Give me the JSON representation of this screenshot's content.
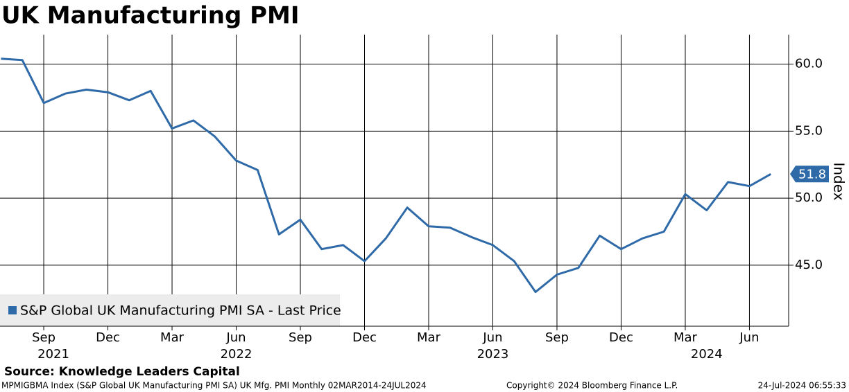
{
  "chart_data": {
    "type": "line",
    "title": "UK Manufacturing PMI",
    "y_label": "Index",
    "source": "Source: Knowledge Leaders Capital",
    "footer_left": "MPMIGBMA Index (S&P Global UK Manufacturing PMI SA) UK Mfg. PMI  Monthly 02MAR2014-24JUL2024",
    "footer_center": "Copyright© 2024 Bloomberg Finance L.P.",
    "footer_right": "24-Jul-2024 06:55:33",
    "x": [
      "2021-07",
      "2021-08",
      "2021-09",
      "2021-10",
      "2021-11",
      "2021-12",
      "2022-01",
      "2022-02",
      "2022-03",
      "2022-04",
      "2022-05",
      "2022-06",
      "2022-07",
      "2022-08",
      "2022-09",
      "2022-10",
      "2022-11",
      "2022-12",
      "2023-01",
      "2023-02",
      "2023-03",
      "2023-04",
      "2023-05",
      "2023-06",
      "2023-07",
      "2023-08",
      "2023-09",
      "2023-10",
      "2023-11",
      "2023-12",
      "2024-01",
      "2024-02",
      "2024-03",
      "2024-04",
      "2024-05",
      "2024-06",
      "2024-07"
    ],
    "series": [
      {
        "name": "S&P Global UK Manufacturing PMI SA - Last Price",
        "color": "#2f6aa8",
        "values": [
          60.4,
          60.3,
          57.1,
          57.8,
          58.1,
          57.9,
          57.3,
          58.0,
          55.2,
          55.8,
          54.6,
          52.8,
          52.1,
          47.3,
          48.4,
          46.2,
          46.5,
          45.3,
          47.0,
          49.3,
          47.9,
          47.8,
          47.1,
          46.5,
          45.3,
          43.0,
          44.3,
          44.8,
          47.2,
          46.2,
          47.0,
          47.5,
          50.3,
          49.1,
          51.2,
          50.9,
          51.8
        ]
      }
    ],
    "ylim": [
      40.45,
      62.2
    ],
    "yticks": [
      {
        "value": 45,
        "label": "45.0"
      },
      {
        "value": 50,
        "label": "50.0"
      },
      {
        "value": 55,
        "label": "55.0"
      },
      {
        "value": 60,
        "label": "60.0"
      }
    ],
    "xticks": [
      {
        "value": "2021-09",
        "label": "Sep"
      },
      {
        "value": "2021-12",
        "label": "Dec"
      },
      {
        "value": "2022-03",
        "label": "Mar"
      },
      {
        "value": "2022-06",
        "label": "Jun"
      },
      {
        "value": "2022-09",
        "label": "Sep"
      },
      {
        "value": "2022-12",
        "label": "Dec"
      },
      {
        "value": "2023-03",
        "label": "Mar"
      },
      {
        "value": "2023-06",
        "label": "Jun"
      },
      {
        "value": "2023-09",
        "label": "Sep"
      },
      {
        "value": "2023-12",
        "label": "Dec"
      },
      {
        "value": "2024-03",
        "label": "Mar"
      },
      {
        "value": "2024-06",
        "label": "Jun"
      }
    ],
    "year_labels": [
      {
        "value": "2021-09",
        "label": "2021"
      },
      {
        "value": "2022-06",
        "label": "2022"
      },
      {
        "value": "2023-06",
        "label": "2023"
      },
      {
        "value": "2024-04",
        "label": "2024"
      }
    ],
    "grid": true
  }
}
